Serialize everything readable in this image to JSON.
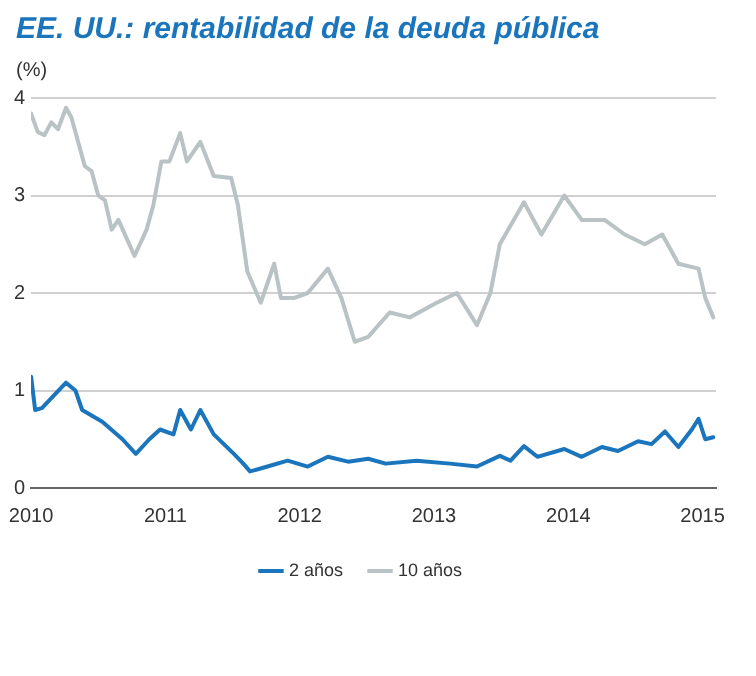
{
  "chart_data": {
    "type": "line",
    "title": "EE. UU.: rentabilidad de la deuda pública",
    "ylabel": "(%)",
    "xlim": [
      2010,
      2015.1
    ],
    "xticks": [
      2010,
      2011,
      2012,
      2013,
      2014,
      2015
    ],
    "ylim": [
      0,
      4
    ],
    "yticks": [
      0,
      1,
      2,
      3,
      4
    ],
    "grid": "y",
    "legend": "bottom",
    "marker": "none",
    "line_style": "solid",
    "series": [
      {
        "name": "2 años",
        "color": "#1a75bc",
        "x": [
          2010.0,
          2010.03,
          2010.08,
          2010.26,
          2010.33,
          2010.38,
          2010.53,
          2010.68,
          2010.78,
          2010.88,
          2010.96,
          2011.06,
          2011.11,
          2011.19,
          2011.26,
          2011.36,
          2011.51,
          2011.58,
          2011.63,
          2011.76,
          2011.91,
          2012.06,
          2012.21,
          2012.36,
          2012.51,
          2012.64,
          2012.87,
          2013.12,
          2013.32,
          2013.49,
          2013.57,
          2013.67,
          2013.77,
          2013.97,
          2014.1,
          2014.25,
          2014.37,
          2014.52,
          2014.62,
          2014.72,
          2014.82,
          2014.92,
          2014.97,
          2015.02,
          2015.08
        ],
        "values": [
          1.14,
          0.8,
          0.82,
          1.08,
          1.0,
          0.8,
          0.68,
          0.5,
          0.35,
          0.5,
          0.6,
          0.55,
          0.8,
          0.6,
          0.8,
          0.55,
          0.35,
          0.25,
          0.17,
          0.22,
          0.28,
          0.22,
          0.32,
          0.27,
          0.3,
          0.25,
          0.28,
          0.25,
          0.22,
          0.33,
          0.28,
          0.43,
          0.32,
          0.4,
          0.32,
          0.42,
          0.38,
          0.48,
          0.45,
          0.58,
          0.42,
          0.6,
          0.71,
          0.5,
          0.52
        ]
      },
      {
        "name": "10 años",
        "color": "#b9c2c4",
        "x": [
          2010.0,
          2010.05,
          2010.1,
          2010.15,
          2010.2,
          2010.26,
          2010.3,
          2010.35,
          2010.4,
          2010.45,
          2010.5,
          2010.55,
          2010.6,
          2010.65,
          2010.77,
          2010.86,
          2010.91,
          2010.97,
          2011.03,
          2011.11,
          2011.16,
          2011.26,
          2011.36,
          2011.49,
          2011.54,
          2011.61,
          2011.71,
          2011.81,
          2011.86,
          2011.96,
          2012.06,
          2012.21,
          2012.31,
          2012.41,
          2012.51,
          2012.67,
          2012.82,
          2013.02,
          2013.17,
          2013.32,
          2013.42,
          2013.49,
          2013.67,
          2013.8,
          2013.97,
          2014.1,
          2014.27,
          2014.42,
          2014.57,
          2014.7,
          2014.82,
          2014.97,
          2015.02,
          2015.08
        ],
        "values": [
          3.84,
          3.65,
          3.62,
          3.75,
          3.68,
          3.9,
          3.8,
          3.55,
          3.3,
          3.25,
          3.0,
          2.95,
          2.65,
          2.75,
          2.38,
          2.65,
          2.9,
          3.35,
          3.35,
          3.64,
          3.35,
          3.55,
          3.2,
          3.18,
          2.9,
          2.22,
          1.9,
          2.3,
          1.95,
          1.95,
          2.0,
          2.25,
          1.95,
          1.5,
          1.55,
          1.8,
          1.75,
          1.9,
          2.0,
          1.67,
          2.0,
          2.5,
          2.93,
          2.6,
          3.0,
          2.75,
          2.75,
          2.6,
          2.5,
          2.6,
          2.3,
          2.25,
          1.95,
          1.75
        ]
      }
    ]
  }
}
